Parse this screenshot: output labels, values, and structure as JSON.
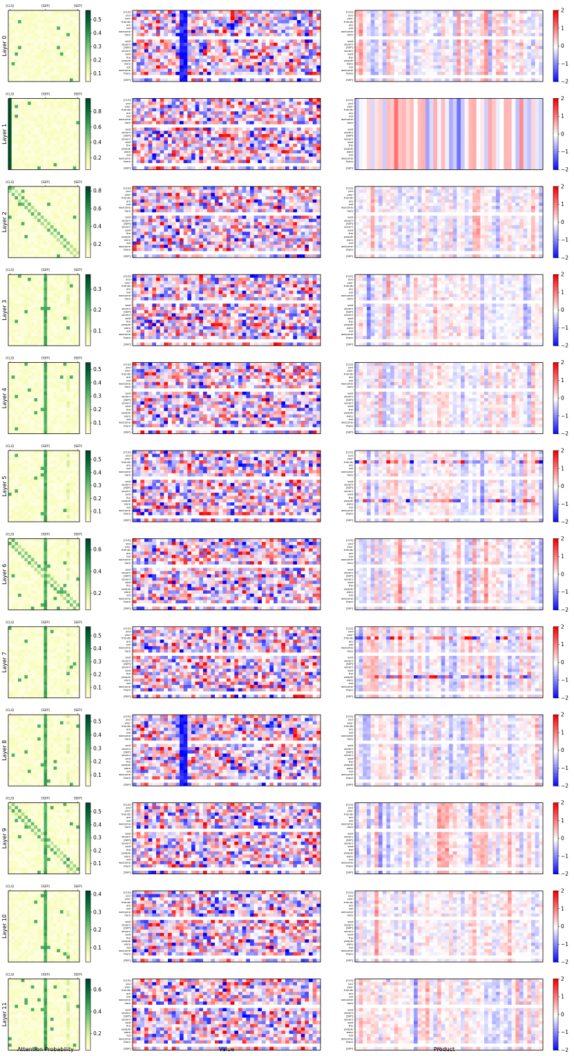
{
  "chart_data": {
    "type": "heatmap",
    "layer_labels": [
      "Layer 0",
      "Layer 1",
      "Layer 2",
      "Layer 3",
      "Layer 4",
      "Layer 5",
      "Layer 6",
      "Layer 7",
      "Layer 8",
      "Layer 9",
      "Layer 10",
      "Layer 11"
    ],
    "column_titles": {
      "attention": "Attention Probability",
      "value": "Value",
      "product": "Product"
    },
    "attention_top_ticks": [
      "[CLS]",
      "[SEP]",
      "[SEP]"
    ],
    "token_labels": [
      "[CLS]",
      "you",
      "your",
      "friends",
      "are",
      "not",
      "welcome",
      "here",
      "",
      "said",
      "severn",
      "[SEP]",
      "severn",
      "said",
      "the",
      "people",
      "were",
      "not",
      "welcome",
      "there",
      "",
      "[SEP]"
    ],
    "sequence_length": 22,
    "value_dims": 48,
    "attention_colorbars": [
      {
        "ticks": [
          0.1,
          0.2,
          0.3,
          0.4,
          0.5
        ],
        "range": [
          0.04,
          0.57
        ]
      },
      {
        "ticks": [
          0.2,
          0.4,
          0.6,
          0.8
        ],
        "range": [
          0.05,
          0.97
        ]
      },
      {
        "ticks": [
          0.2,
          0.4,
          0.6,
          0.8
        ],
        "range": [
          0.05,
          0.85
        ]
      },
      {
        "ticks": [
          0.1,
          0.2,
          0.3
        ],
        "range": [
          0.03,
          0.37
        ]
      },
      {
        "ticks": [
          0.1,
          0.2,
          0.3,
          0.4,
          0.5
        ],
        "range": [
          0.02,
          0.55
        ]
      },
      {
        "ticks": [
          0.1,
          0.2,
          0.3,
          0.4,
          0.5
        ],
        "range": [
          0.02,
          0.57
        ]
      },
      {
        "ticks": [
          0.2,
          0.4,
          0.6
        ],
        "range": [
          0.05,
          0.7
        ]
      },
      {
        "ticks": [
          0.1,
          0.2,
          0.3,
          0.4,
          0.5
        ],
        "range": [
          0.02,
          0.57
        ]
      },
      {
        "ticks": [
          0.1,
          0.2,
          0.3,
          0.4,
          0.5
        ],
        "range": [
          0.02,
          0.55
        ]
      },
      {
        "ticks": [
          0.1,
          0.2,
          0.3,
          0.4,
          0.5
        ],
        "range": [
          0.02,
          0.57
        ]
      },
      {
        "ticks": [
          0.1,
          0.2,
          0.3,
          0.4
        ],
        "range": [
          0.02,
          0.42
        ]
      },
      {
        "ticks": [
          0.2,
          0.4,
          0.6
        ],
        "range": [
          0.05,
          0.7
        ]
      }
    ],
    "product_colorbar": {
      "ticks": [
        -2,
        -1,
        0,
        1,
        2
      ],
      "range": [
        -2,
        2
      ]
    },
    "colormaps": {
      "attention": [
        "#ffffe5",
        "#f7fcb9",
        "#d9f0a3",
        "#addd8e",
        "#78c679",
        "#41ab5d",
        "#238443",
        "#006837",
        "#004529"
      ],
      "diverging": [
        "#0000ff",
        "#ffffff",
        "#ff0000"
      ]
    },
    "seed": 1234
  }
}
